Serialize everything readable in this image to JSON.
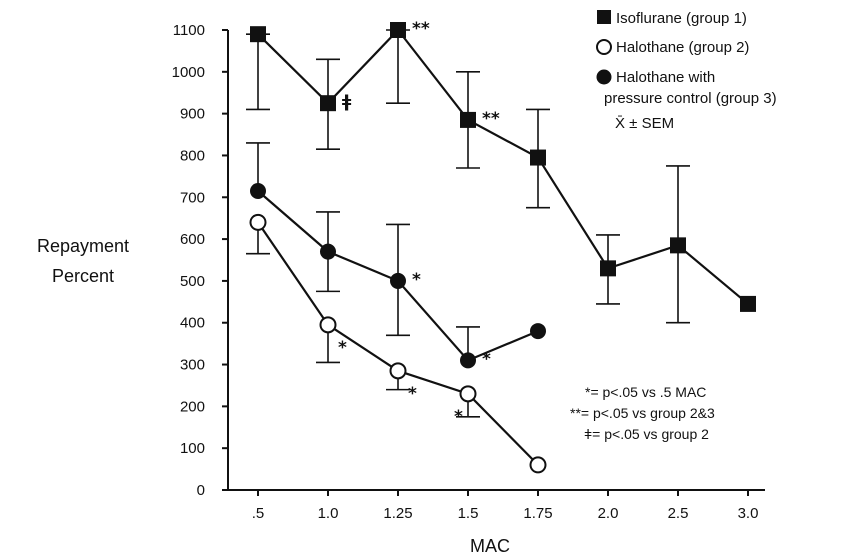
{
  "chart_data": {
    "type": "line",
    "xlabel": "MAC",
    "ylabel_line1": "Repayment",
    "ylabel_line2": "Percent",
    "categories": [
      ".5",
      "1.0",
      "1.25",
      "1.5",
      "1.75",
      "2.0",
      "2.5",
      "3.0"
    ],
    "yticks": [
      0,
      100,
      200,
      300,
      400,
      500,
      600,
      700,
      800,
      900,
      1000,
      1100
    ],
    "ylim": [
      0,
      1100
    ],
    "series": [
      {
        "name": "Isoflurane (group 1)",
        "marker": "square-filled",
        "values": [
          1090,
          925,
          1100,
          885,
          795,
          530,
          585,
          445
        ],
        "err_low": [
          910,
          815,
          925,
          770,
          675,
          445,
          400,
          null
        ],
        "err_high": [
          1090,
          1030,
          1100,
          1000,
          910,
          610,
          775,
          null
        ],
        "sig": [
          "",
          "ǂ",
          "**",
          "**",
          "",
          "",
          "",
          ""
        ]
      },
      {
        "name": "Halothane (group 2)",
        "marker": "circle-open",
        "values": [
          640,
          395,
          285,
          230,
          60,
          null,
          null,
          null
        ],
        "err_low": [
          565,
          305,
          240,
          175,
          null,
          null,
          null,
          null
        ],
        "err_high": [
          null,
          null,
          null,
          null,
          null,
          null,
          null,
          null
        ],
        "sig": [
          "",
          "*",
          "*",
          "*",
          "",
          "",
          "",
          ""
        ]
      },
      {
        "name": "Halothane with pressure control (group 3)",
        "marker": "circle-filled",
        "values": [
          715,
          570,
          500,
          310,
          380,
          null,
          null,
          null
        ],
        "err_low": [
          null,
          475,
          370,
          null,
          null,
          null,
          null,
          null
        ],
        "err_high": [
          830,
          665,
          635,
          390,
          null,
          null,
          null,
          null
        ],
        "sig": [
          "",
          "",
          "*",
          "*",
          "",
          "",
          "",
          ""
        ]
      }
    ],
    "legend": {
      "entries": [
        "Isoflurane (group 1)",
        "Halothane (group 2)",
        "Halothane with",
        "pressure control (group 3)"
      ],
      "stat": "X̄ ± SEM",
      "position": "top-right"
    },
    "notes": [
      "*= p<.05 vs .5 MAC",
      "**= p<.05 vs group 2&3",
      "ǂ= p<.05 vs group 2"
    ]
  }
}
